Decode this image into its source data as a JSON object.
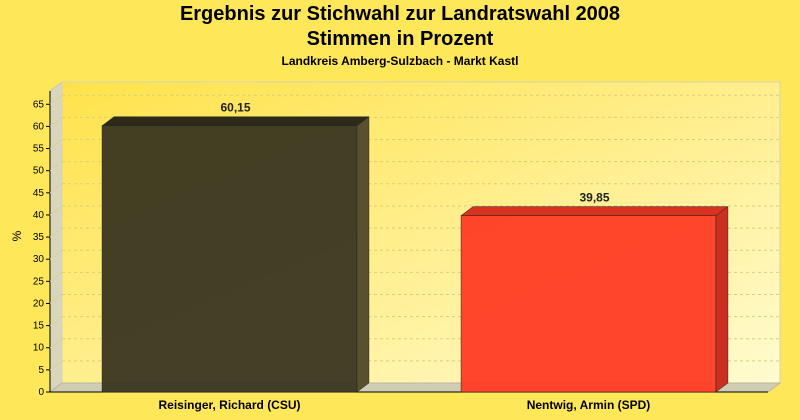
{
  "chart_data": {
    "type": "bar",
    "title": "Ergebnis zur Stichwahl zur Landratswahl 2008",
    "subtitle": "Stimmen in Prozent",
    "caption": "Landkreis Amberg-Sulzbach - Markt Kastl",
    "xlabel": "",
    "ylabel": "%",
    "ylim": [
      0,
      68
    ],
    "yticks": [
      "0",
      "5",
      "10",
      "15",
      "20",
      "25",
      "30",
      "35",
      "40",
      "45",
      "50",
      "55",
      "60",
      "65"
    ],
    "categories": [
      "Reisinger, Richard (CSU)",
      "Nentwig, Armin (SPD)"
    ],
    "values": [
      60.15,
      39.85
    ],
    "data_labels": [
      "60,15",
      "39,85"
    ],
    "colors": [
      "#3a3520",
      "#ff3b24"
    ],
    "grid": true,
    "legend": "none"
  }
}
